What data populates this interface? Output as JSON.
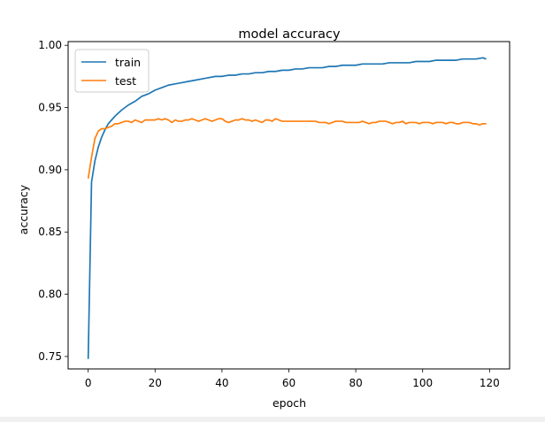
{
  "chart_data": {
    "type": "line",
    "title": "model accuracy",
    "xlabel": "epoch",
    "ylabel": "accuracy",
    "xlim": [
      -6,
      126
    ],
    "ylim": [
      0.74,
      1.003
    ],
    "xticks": [
      0,
      20,
      40,
      60,
      80,
      100,
      120
    ],
    "yticks": [
      0.75,
      0.8,
      0.85,
      0.9,
      0.95,
      1.0
    ],
    "xtick_labels": [
      "0",
      "20",
      "40",
      "60",
      "80",
      "100",
      "120"
    ],
    "ytick_labels": [
      "0.75",
      "0.80",
      "0.85",
      "0.90",
      "0.95",
      "1.00"
    ],
    "grid": false,
    "legend_position": "top-left",
    "series": [
      {
        "name": "train",
        "color": "#1f77b4",
        "points": [
          [
            0,
            0.748
          ],
          [
            1,
            0.89
          ],
          [
            2,
            0.907
          ],
          [
            3,
            0.918
          ],
          [
            4,
            0.926
          ],
          [
            5,
            0.932
          ],
          [
            6,
            0.937
          ],
          [
            8,
            0.943
          ],
          [
            10,
            0.948
          ],
          [
            12,
            0.952
          ],
          [
            14,
            0.955
          ],
          [
            16,
            0.959
          ],
          [
            18,
            0.961
          ],
          [
            20,
            0.964
          ],
          [
            22,
            0.966
          ],
          [
            24,
            0.968
          ],
          [
            26,
            0.969
          ],
          [
            28,
            0.97
          ],
          [
            30,
            0.971
          ],
          [
            32,
            0.972
          ],
          [
            34,
            0.973
          ],
          [
            36,
            0.974
          ],
          [
            38,
            0.975
          ],
          [
            40,
            0.975
          ],
          [
            42,
            0.976
          ],
          [
            44,
            0.976
          ],
          [
            46,
            0.977
          ],
          [
            48,
            0.977
          ],
          [
            50,
            0.978
          ],
          [
            52,
            0.978
          ],
          [
            54,
            0.979
          ],
          [
            56,
            0.979
          ],
          [
            58,
            0.98
          ],
          [
            60,
            0.98
          ],
          [
            62,
            0.981
          ],
          [
            64,
            0.981
          ],
          [
            66,
            0.982
          ],
          [
            68,
            0.982
          ],
          [
            70,
            0.982
          ],
          [
            72,
            0.983
          ],
          [
            74,
            0.983
          ],
          [
            76,
            0.984
          ],
          [
            78,
            0.984
          ],
          [
            80,
            0.984
          ],
          [
            82,
            0.985
          ],
          [
            84,
            0.985
          ],
          [
            86,
            0.985
          ],
          [
            88,
            0.985
          ],
          [
            90,
            0.986
          ],
          [
            92,
            0.986
          ],
          [
            94,
            0.986
          ],
          [
            96,
            0.986
          ],
          [
            98,
            0.987
          ],
          [
            100,
            0.987
          ],
          [
            102,
            0.987
          ],
          [
            104,
            0.988
          ],
          [
            106,
            0.988
          ],
          [
            108,
            0.988
          ],
          [
            110,
            0.988
          ],
          [
            112,
            0.989
          ],
          [
            114,
            0.989
          ],
          [
            116,
            0.989
          ],
          [
            118,
            0.99
          ],
          [
            119,
            0.989
          ]
        ]
      },
      {
        "name": "test",
        "color": "#ff7f0e",
        "points": [
          [
            0,
            0.893
          ],
          [
            1,
            0.91
          ],
          [
            2,
            0.925
          ],
          [
            3,
            0.931
          ],
          [
            4,
            0.933
          ],
          [
            5,
            0.933
          ],
          [
            6,
            0.934
          ],
          [
            7,
            0.935
          ],
          [
            8,
            0.937
          ],
          [
            9,
            0.937
          ],
          [
            10,
            0.938
          ],
          [
            11,
            0.939
          ],
          [
            12,
            0.939
          ],
          [
            13,
            0.938
          ],
          [
            14,
            0.94
          ],
          [
            15,
            0.939
          ],
          [
            16,
            0.938
          ],
          [
            17,
            0.94
          ],
          [
            18,
            0.94
          ],
          [
            19,
            0.94
          ],
          [
            20,
            0.94
          ],
          [
            21,
            0.941
          ],
          [
            22,
            0.94
          ],
          [
            23,
            0.941
          ],
          [
            24,
            0.94
          ],
          [
            25,
            0.938
          ],
          [
            26,
            0.94
          ],
          [
            27,
            0.939
          ],
          [
            28,
            0.939
          ],
          [
            29,
            0.94
          ],
          [
            30,
            0.94
          ],
          [
            31,
            0.941
          ],
          [
            32,
            0.94
          ],
          [
            33,
            0.939
          ],
          [
            34,
            0.94
          ],
          [
            35,
            0.941
          ],
          [
            36,
            0.94
          ],
          [
            37,
            0.939
          ],
          [
            38,
            0.94
          ],
          [
            39,
            0.941
          ],
          [
            40,
            0.941
          ],
          [
            41,
            0.939
          ],
          [
            42,
            0.938
          ],
          [
            43,
            0.939
          ],
          [
            44,
            0.94
          ],
          [
            45,
            0.94
          ],
          [
            46,
            0.941
          ],
          [
            47,
            0.94
          ],
          [
            48,
            0.94
          ],
          [
            49,
            0.939
          ],
          [
            50,
            0.94
          ],
          [
            51,
            0.939
          ],
          [
            52,
            0.938
          ],
          [
            53,
            0.94
          ],
          [
            54,
            0.94
          ],
          [
            55,
            0.939
          ],
          [
            56,
            0.941
          ],
          [
            57,
            0.94
          ],
          [
            58,
            0.939
          ],
          [
            59,
            0.939
          ],
          [
            60,
            0.939
          ],
          [
            61,
            0.939
          ],
          [
            62,
            0.939
          ],
          [
            63,
            0.939
          ],
          [
            64,
            0.939
          ],
          [
            65,
            0.939
          ],
          [
            66,
            0.939
          ],
          [
            67,
            0.939
          ],
          [
            68,
            0.939
          ],
          [
            69,
            0.938
          ],
          [
            70,
            0.938
          ],
          [
            71,
            0.938
          ],
          [
            72,
            0.937
          ],
          [
            73,
            0.938
          ],
          [
            74,
            0.939
          ],
          [
            75,
            0.939
          ],
          [
            76,
            0.939
          ],
          [
            77,
            0.938
          ],
          [
            78,
            0.938
          ],
          [
            79,
            0.938
          ],
          [
            80,
            0.938
          ],
          [
            81,
            0.938
          ],
          [
            82,
            0.939
          ],
          [
            83,
            0.938
          ],
          [
            84,
            0.937
          ],
          [
            85,
            0.938
          ],
          [
            86,
            0.938
          ],
          [
            87,
            0.939
          ],
          [
            88,
            0.939
          ],
          [
            89,
            0.939
          ],
          [
            90,
            0.938
          ],
          [
            91,
            0.937
          ],
          [
            92,
            0.938
          ],
          [
            93,
            0.938
          ],
          [
            94,
            0.939
          ],
          [
            95,
            0.937
          ],
          [
            96,
            0.938
          ],
          [
            97,
            0.938
          ],
          [
            98,
            0.938
          ],
          [
            99,
            0.937
          ],
          [
            100,
            0.938
          ],
          [
            101,
            0.938
          ],
          [
            102,
            0.938
          ],
          [
            103,
            0.937
          ],
          [
            104,
            0.938
          ],
          [
            105,
            0.938
          ],
          [
            106,
            0.938
          ],
          [
            107,
            0.937
          ],
          [
            108,
            0.938
          ],
          [
            109,
            0.938
          ],
          [
            110,
            0.937
          ],
          [
            111,
            0.937
          ],
          [
            112,
            0.938
          ],
          [
            113,
            0.938
          ],
          [
            114,
            0.938
          ],
          [
            115,
            0.937
          ],
          [
            116,
            0.937
          ],
          [
            117,
            0.936
          ],
          [
            118,
            0.937
          ],
          [
            119,
            0.937
          ]
        ]
      }
    ]
  }
}
